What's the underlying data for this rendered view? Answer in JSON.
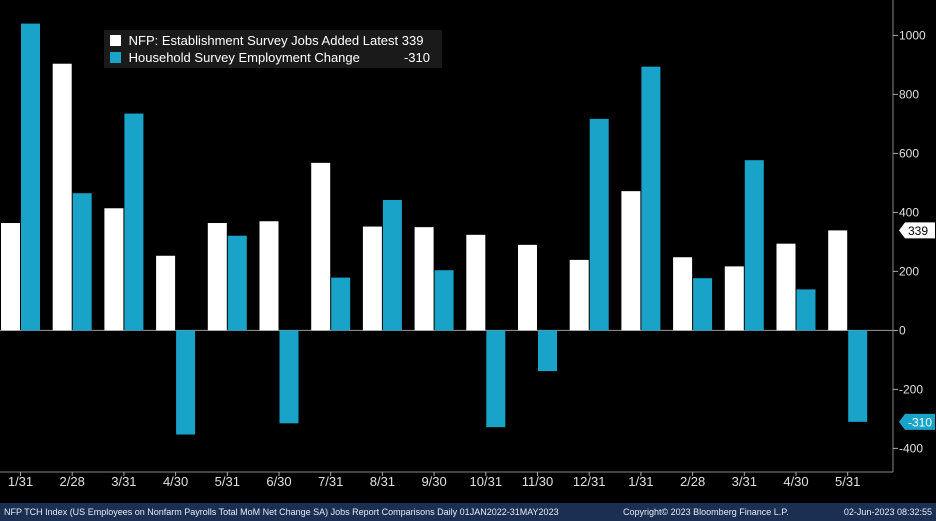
{
  "chart_data": {
    "type": "bar",
    "categories": [
      "1/31",
      "2/28",
      "3/31",
      "4/30",
      "5/31",
      "6/30",
      "7/31",
      "8/31",
      "9/30",
      "10/31",
      "11/30",
      "12/31",
      "1/31",
      "2/28",
      "3/31",
      "4/30",
      "5/31"
    ],
    "series": [
      {
        "name": "NFP: Establishment Survey Jobs Added Latest",
        "latest": "339",
        "color": "#ffffff",
        "values": [
          364,
          904,
          414,
          253,
          364,
          370,
          568,
          352,
          350,
          324,
          290,
          239,
          472,
          248,
          217,
          294,
          339
        ]
      },
      {
        "name": "Household Survey Employment Change",
        "latest": "-310",
        "color": "#1aa3c8",
        "values": [
          1040,
          465,
          735,
          -353,
          321,
          -315,
          179,
          442,
          204,
          -328,
          -138,
          717,
          894,
          177,
          577,
          139,
          -310
        ]
      }
    ],
    "yaxis": {
      "ticks": [
        1000,
        800,
        600,
        400,
        200,
        0,
        -200,
        -400
      ],
      "ylim": [
        -480,
        1120
      ],
      "position": "right"
    },
    "latest_tags": [
      {
        "series": 0,
        "label": "339",
        "value": 339
      },
      {
        "series": 1,
        "label": "-310",
        "value": -310
      }
    ]
  },
  "footer": {
    "left": "NFP TCH Index (US Employees on Nonfarm Payrolls Total MoM Net Change SA) Jobs Report Comparisons  Daily 01JAN2022-31MAY2023",
    "middle": "Copyright© 2023 Bloomberg Finance L.P.",
    "right": "02-Jun-2023 08:32:55"
  }
}
